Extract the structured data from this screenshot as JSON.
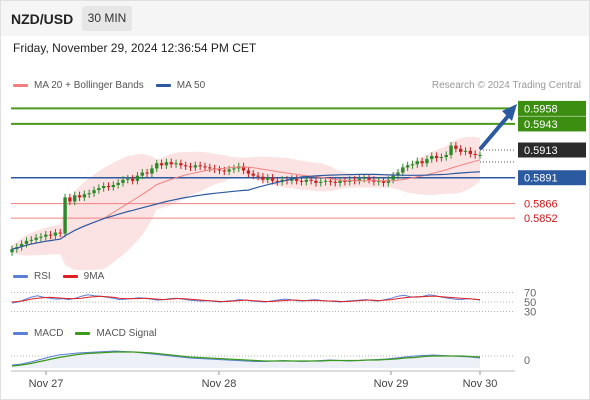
{
  "header": {
    "symbol": "NZD/USD",
    "timeframe": "30 MIN"
  },
  "datetime": "Friday, November 29, 2024 12:36:54 PM CET",
  "legend_main": [
    {
      "label": "MA 20 + Bollinger Bands",
      "color": "#f08080"
    },
    {
      "label": "MA 50",
      "color": "#2b5aa0"
    }
  ],
  "credit": "Research © 2024 Trading Central",
  "legend_rsi": [
    {
      "label": "RSI",
      "color": "#5b7fd6"
    },
    {
      "label": "9MA",
      "color": "#e02020"
    }
  ],
  "legend_macd": [
    {
      "label": "MACD",
      "color": "#5b7fd6"
    },
    {
      "label": "MACD Signal",
      "color": "#3a9a1a"
    }
  ],
  "colors": {
    "up": "#2a8a2a",
    "down": "#c82020",
    "resistance": "#4c9a1c",
    "support": "#f08080",
    "pivot": "#2b5aa0",
    "current": "#2b2b2b",
    "arrow": "#2b5aa0"
  },
  "chart_data": {
    "type": "candlestick",
    "x_ticks": [
      "Nov 27",
      "Nov 28",
      "Nov 29",
      "Nov 30"
    ],
    "price_ylim": [
      0.5825,
      0.597
    ],
    "current_price": "0.5913",
    "levels": [
      {
        "label": "0.5958",
        "value": 0.5958,
        "kind": "resistance"
      },
      {
        "label": "0.5943",
        "value": 0.5943,
        "kind": "resistance"
      },
      {
        "label": "0.5891",
        "value": 0.5891,
        "kind": "pivot"
      },
      {
        "label": "0.5866",
        "value": 0.5866,
        "kind": "support"
      },
      {
        "label": "0.5852",
        "value": 0.5852,
        "kind": "support"
      }
    ],
    "close": [
      0.5822,
      0.5824,
      0.5827,
      0.583,
      0.5831,
      0.5833,
      0.5834,
      0.5836,
      0.5835,
      0.5838,
      0.5837,
      0.5872,
      0.5868,
      0.5874,
      0.5872,
      0.5875,
      0.5876,
      0.5879,
      0.5881,
      0.5883,
      0.5882,
      0.5884,
      0.5886,
      0.5889,
      0.589,
      0.5888,
      0.5893,
      0.5896,
      0.5895,
      0.59,
      0.5905,
      0.5903,
      0.5906,
      0.5904,
      0.5905,
      0.5903,
      0.5902,
      0.5901,
      0.5903,
      0.5902,
      0.5901,
      0.59,
      0.5899,
      0.5898,
      0.5897,
      0.5899,
      0.59,
      0.5902,
      0.5898,
      0.5895,
      0.5893,
      0.5892,
      0.5889,
      0.5891,
      0.5888,
      0.5887,
      0.5889,
      0.5888,
      0.589,
      0.5888,
      0.5887,
      0.5889,
      0.5888,
      0.5886,
      0.5887,
      0.5888,
      0.5887,
      0.5886,
      0.5888,
      0.5887,
      0.5889,
      0.5888,
      0.589,
      0.5891,
      0.5889,
      0.5887,
      0.5888,
      0.5886,
      0.5889,
      0.5893,
      0.5896,
      0.5901,
      0.5903,
      0.5904,
      0.5907,
      0.5905,
      0.5909,
      0.5912,
      0.591,
      0.5911,
      0.5913,
      0.5922,
      0.5919,
      0.5916,
      0.5917,
      0.5914,
      0.5913,
      0.5913
    ],
    "rsi_ylim": [
      25,
      75
    ],
    "rsi_levels": [
      70,
      50,
      30
    ],
    "rsi": [
      48,
      50,
      55,
      60,
      63,
      60,
      58,
      56,
      57,
      55,
      58,
      62,
      65,
      63,
      62,
      60,
      58,
      55,
      56,
      57,
      59,
      58,
      56,
      54,
      55,
      57,
      58,
      56,
      54,
      53,
      52,
      53,
      51,
      50,
      52,
      53,
      55,
      54,
      52,
      51,
      50,
      52,
      54,
      56,
      55,
      53,
      52,
      54,
      55,
      53,
      52,
      51,
      50,
      52,
      53,
      54,
      55,
      53,
      52,
      55,
      58,
      62,
      64,
      61,
      60,
      62,
      65,
      63,
      60,
      58,
      56,
      55,
      57,
      56,
      54
    ],
    "rsi_ma": [
      50,
      51,
      53,
      56,
      58,
      59,
      60,
      59,
      58,
      57,
      57,
      58,
      60,
      61,
      62,
      61,
      60,
      58,
      57,
      57,
      57,
      58,
      57,
      56,
      55,
      56,
      57,
      57,
      56,
      55,
      54,
      53,
      52,
      51,
      51,
      52,
      53,
      54,
      53,
      52,
      51,
      51,
      52,
      53,
      54,
      54,
      53,
      53,
      53,
      53,
      52,
      52,
      51,
      51,
      52,
      53,
      54,
      54,
      53,
      54,
      55,
      57,
      59,
      60,
      61,
      61,
      62,
      62,
      61,
      60,
      59,
      58,
      57,
      56,
      55
    ],
    "macd_zero": 0,
    "macd": [
      -8,
      -6,
      -2,
      3,
      8,
      12,
      14,
      16,
      17,
      18,
      19,
      20,
      19,
      18,
      16,
      14,
      12,
      10,
      8,
      6,
      5,
      4,
      3,
      2,
      1,
      0,
      -1,
      -1,
      0,
      1,
      0,
      -1,
      0,
      1,
      2,
      1,
      0,
      1,
      2,
      3,
      4,
      6,
      8,
      10,
      11,
      12,
      11,
      10,
      9,
      8,
      6
    ],
    "macd_signal": [
      -10,
      -8,
      -5,
      -1,
      3,
      7,
      10,
      13,
      15,
      16,
      17,
      18,
      18,
      18,
      17,
      16,
      14,
      12,
      10,
      8,
      7,
      6,
      5,
      4,
      3,
      2,
      1,
      0,
      0,
      0,
      0,
      0,
      0,
      0,
      1,
      1,
      1,
      1,
      2,
      2,
      3,
      4,
      6,
      7,
      9,
      10,
      10,
      10,
      10,
      9,
      8
    ],
    "rsi_axis_labels": [
      "70",
      "50",
      "30"
    ],
    "macd_axis_label": "0"
  }
}
